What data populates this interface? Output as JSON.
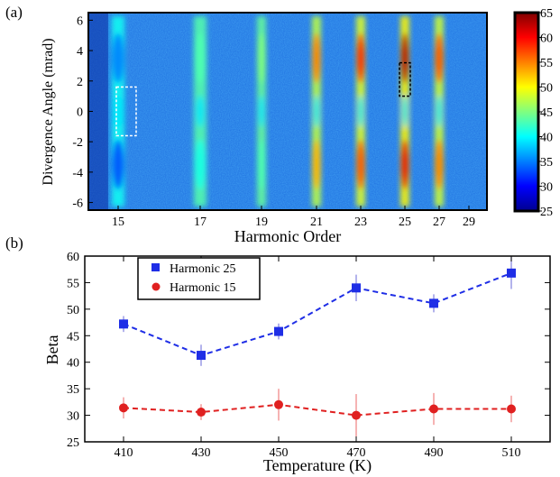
{
  "panel_a_label": "(a)",
  "panel_b_label": "(b)",
  "chart_data": [
    {
      "type": "heatmap",
      "xlabel": "Harmonic Order",
      "ylabel": "Divergence Angle (mrad)",
      "x_ticks": [
        "15",
        "17",
        "19",
        "21",
        "23",
        "25",
        "27",
        "29"
      ],
      "y_ticks": [
        "6",
        "4",
        "2",
        "0",
        "-2",
        "-4",
        "-6"
      ],
      "ylim": [
        -6.5,
        6.5
      ],
      "colorbar": {
        "min": 25,
        "max": 65,
        "ticks": [
          "65",
          "60",
          "55",
          "50",
          "45",
          "40",
          "35",
          "30",
          "25"
        ],
        "colormap": "jet"
      },
      "harmonic_bands": [
        {
          "order": 15,
          "intensity": 0.25
        },
        {
          "order": 17,
          "intensity": 0.45
        },
        {
          "order": 19,
          "intensity": 0.5
        },
        {
          "order": 21,
          "intensity": 0.75
        },
        {
          "order": 23,
          "intensity": 0.85
        },
        {
          "order": 25,
          "intensity": 0.95
        },
        {
          "order": 27,
          "intensity": 0.8
        }
      ],
      "highlight_boxes": [
        {
          "harmonic": 15,
          "color": "#ffffff",
          "style": "dashed"
        },
        {
          "harmonic": 25,
          "color": "#000000",
          "style": "dashed"
        }
      ]
    },
    {
      "type": "scatter",
      "xlabel": "Temperature (K)",
      "ylabel": "Beta",
      "x_ticks": [
        "410",
        "430",
        "450",
        "470",
        "490",
        "510"
      ],
      "y_ticks": [
        "60",
        "55",
        "50",
        "45",
        "40",
        "35",
        "30",
        "25"
      ],
      "xlim": [
        400,
        520
      ],
      "ylim": [
        25,
        60
      ],
      "grid": false,
      "legend_position": "top-left",
      "series": [
        {
          "name": "Harmonic 25",
          "color": "#1f2ee6",
          "marker": "square",
          "line": "dashed",
          "x": [
            410,
            430,
            450,
            470,
            490,
            510
          ],
          "y": [
            47.2,
            41.3,
            45.8,
            54.0,
            51.1,
            56.8
          ],
          "err": [
            1.5,
            2.0,
            1.5,
            2.5,
            1.7,
            3.0
          ]
        },
        {
          "name": "Harmonic 15",
          "color": "#e02020",
          "marker": "circle",
          "line": "dashed",
          "x": [
            410,
            430,
            450,
            470,
            490,
            510
          ],
          "y": [
            31.4,
            30.6,
            32.0,
            30.0,
            31.2,
            31.2
          ],
          "err": [
            2.0,
            1.5,
            3.0,
            4.0,
            3.0,
            2.5
          ]
        }
      ]
    }
  ]
}
